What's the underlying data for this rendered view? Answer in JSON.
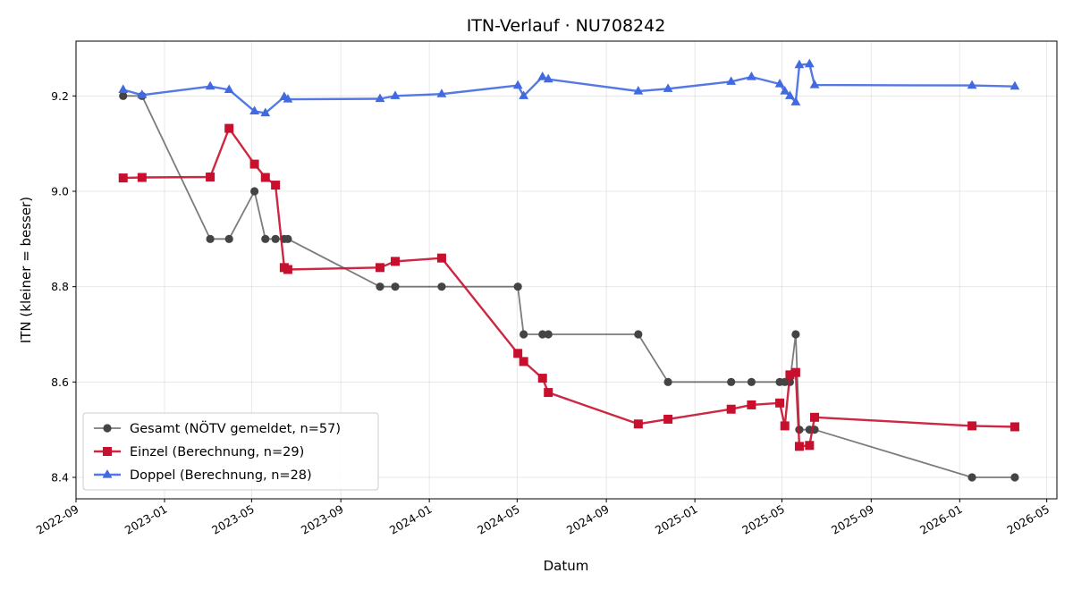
{
  "chart_data": {
    "type": "line",
    "title": "ITN-Verlauf · NU708242",
    "xlabel": "Datum",
    "ylabel": "ITN  (kleiner = besser)",
    "x_type": "date",
    "xlim": [
      "2022-09-01",
      "2026-05-15"
    ],
    "ylim": [
      8.355,
      9.315
    ],
    "x_ticks": [
      "2022-09-01",
      "2023-01-01",
      "2023-05-01",
      "2023-09-01",
      "2024-01-01",
      "2024-05-01",
      "2024-09-01",
      "2025-01-01",
      "2025-05-01",
      "2025-09-01",
      "2026-01-01",
      "2026-05-01"
    ],
    "x_tick_labels": [
      "2022-09",
      "2023-01",
      "2023-05",
      "2023-09",
      "2024-01",
      "2024-05",
      "2024-09",
      "2025-01",
      "2025-05",
      "2025-09",
      "2026-01",
      "2026-05"
    ],
    "y_ticks": [
      8.4,
      8.6,
      8.8,
      9.0,
      9.2
    ],
    "y_tick_labels": [
      "8.4",
      "8.6",
      "8.8",
      "9.0",
      "9.2"
    ],
    "grid": true,
    "legend_position": "lower-left",
    "series": [
      {
        "name": "Gesamt (NÖTV gemeldet, n=57)",
        "color": "#444444",
        "line_opacity": 0.7,
        "marker": "circle",
        "points": [
          [
            "2022-11-05",
            9.2
          ],
          [
            "2022-12-01",
            9.2
          ],
          [
            "2023-03-05",
            8.9
          ],
          [
            "2023-03-31",
            8.9
          ],
          [
            "2023-05-05",
            9.0
          ],
          [
            "2023-05-20",
            8.9
          ],
          [
            "2023-06-03",
            8.9
          ],
          [
            "2023-06-15",
            8.9
          ],
          [
            "2023-06-20",
            8.9
          ],
          [
            "2023-10-25",
            8.8
          ],
          [
            "2023-11-15",
            8.8
          ],
          [
            "2024-01-18",
            8.8
          ],
          [
            "2024-05-02",
            8.8
          ],
          [
            "2024-05-10",
            8.7
          ],
          [
            "2024-06-05",
            8.7
          ],
          [
            "2024-06-13",
            8.7
          ],
          [
            "2024-10-15",
            8.7
          ],
          [
            "2024-11-25",
            8.6
          ],
          [
            "2025-02-20",
            8.6
          ],
          [
            "2025-03-20",
            8.6
          ],
          [
            "2025-04-28",
            8.6
          ],
          [
            "2025-05-05",
            8.6
          ],
          [
            "2025-05-12",
            8.6
          ],
          [
            "2025-05-20",
            8.7
          ],
          [
            "2025-05-25",
            8.5
          ],
          [
            "2025-06-08",
            8.5
          ],
          [
            "2025-06-15",
            8.5
          ],
          [
            "2026-01-18",
            8.4
          ],
          [
            "2026-03-18",
            8.4
          ]
        ]
      },
      {
        "name": "Einzel (Berechnung, n=29)",
        "color": "#c8102e",
        "line_opacity": 0.9,
        "marker": "square",
        "points": [
          [
            "2022-11-05",
            9.028
          ],
          [
            "2022-12-01",
            9.029
          ],
          [
            "2023-03-05",
            9.03
          ],
          [
            "2023-03-31",
            9.132
          ],
          [
            "2023-05-05",
            9.057
          ],
          [
            "2023-05-20",
            9.029
          ],
          [
            "2023-06-03",
            9.013
          ],
          [
            "2023-06-15",
            8.84
          ],
          [
            "2023-06-20",
            8.836
          ],
          [
            "2023-10-25",
            8.84
          ],
          [
            "2023-11-15",
            8.853
          ],
          [
            "2024-01-18",
            8.86
          ],
          [
            "2024-05-02",
            8.66
          ],
          [
            "2024-05-10",
            8.643
          ],
          [
            "2024-06-05",
            8.608
          ],
          [
            "2024-06-13",
            8.578
          ],
          [
            "2024-10-15",
            8.512
          ],
          [
            "2024-11-25",
            8.522
          ],
          [
            "2025-02-20",
            8.543
          ],
          [
            "2025-03-20",
            8.552
          ],
          [
            "2025-04-28",
            8.556
          ],
          [
            "2025-05-05",
            8.508
          ],
          [
            "2025-05-12",
            8.615
          ],
          [
            "2025-05-20",
            8.62
          ],
          [
            "2025-05-25",
            8.465
          ],
          [
            "2025-06-08",
            8.467
          ],
          [
            "2025-06-15",
            8.526
          ],
          [
            "2026-01-18",
            8.508
          ],
          [
            "2026-03-18",
            8.506
          ]
        ]
      },
      {
        "name": "Doppel (Berechnung, n=28)",
        "color": "#4169e1",
        "line_opacity": 0.9,
        "marker": "triangle",
        "points": [
          [
            "2022-11-05",
            9.213
          ],
          [
            "2022-12-01",
            9.202
          ],
          [
            "2023-03-05",
            9.22
          ],
          [
            "2023-03-31",
            9.213
          ],
          [
            "2023-05-05",
            9.168
          ],
          [
            "2023-05-20",
            9.164
          ],
          [
            "2023-06-15",
            9.198
          ],
          [
            "2023-06-20",
            9.193
          ],
          [
            "2023-10-25",
            9.194
          ],
          [
            "2023-11-15",
            9.2
          ],
          [
            "2024-01-18",
            9.204
          ],
          [
            "2024-05-02",
            9.222
          ],
          [
            "2024-05-10",
            9.2
          ],
          [
            "2024-06-05",
            9.24
          ],
          [
            "2024-06-13",
            9.235
          ],
          [
            "2024-10-15",
            9.21
          ],
          [
            "2024-11-25",
            9.215
          ],
          [
            "2025-02-20",
            9.23
          ],
          [
            "2025-03-20",
            9.24
          ],
          [
            "2025-04-28",
            9.225
          ],
          [
            "2025-05-05",
            9.21
          ],
          [
            "2025-05-12",
            9.2
          ],
          [
            "2025-05-20",
            9.187
          ],
          [
            "2025-05-25",
            9.265
          ],
          [
            "2025-06-08",
            9.267
          ],
          [
            "2025-06-15",
            9.223
          ],
          [
            "2026-01-18",
            9.222
          ],
          [
            "2026-03-18",
            9.22
          ]
        ]
      }
    ]
  }
}
